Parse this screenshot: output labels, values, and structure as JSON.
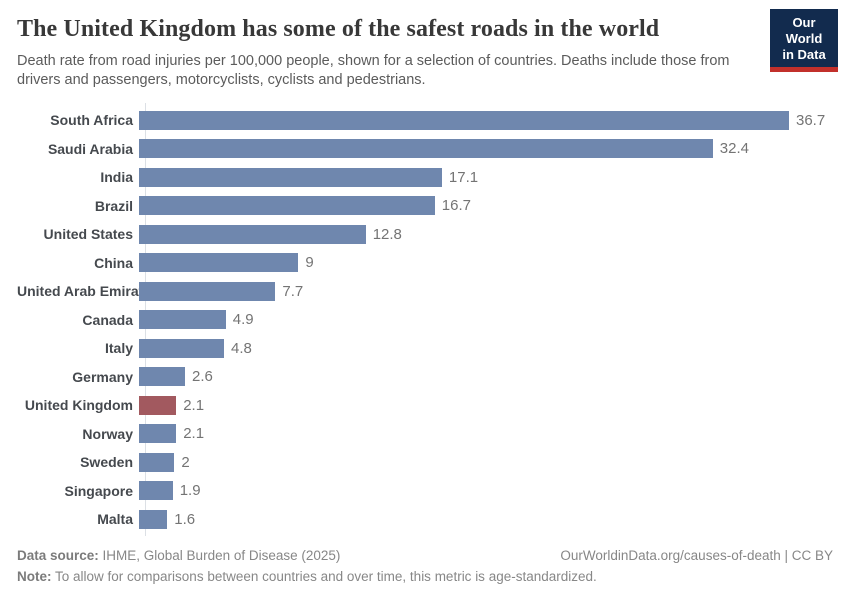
{
  "header": {
    "title": "The United Kingdom has some of the safest roads in the world",
    "subtitle": "Death rate from road injuries per 100,000 people, shown for a selection of countries. Deaths include those from drivers and passengers, motorcyclists, cyclists and pedestrians.",
    "logo": {
      "line1": "Our World",
      "line2": "in Data",
      "bg_color": "#122b4e",
      "stripe_color": "#c2302b"
    }
  },
  "chart_data": {
    "type": "bar",
    "orientation": "horizontal",
    "title": "The United Kingdom has some of the safest roads in the world",
    "categories": [
      "South Africa",
      "Saudi Arabia",
      "India",
      "Brazil",
      "United States",
      "China",
      "United Arab Emirates",
      "Canada",
      "Italy",
      "Germany",
      "United Kingdom",
      "Norway",
      "Sweden",
      "Singapore",
      "Malta"
    ],
    "values": [
      36.7,
      32.4,
      17.1,
      16.7,
      12.8,
      9,
      7.7,
      4.9,
      4.8,
      2.6,
      2.1,
      2.1,
      2,
      1.9,
      1.6
    ],
    "value_labels": [
      "36.7",
      "32.4",
      "17.1",
      "16.7",
      "12.8",
      "9",
      "7.7",
      "4.9",
      "4.8",
      "2.6",
      "2.1",
      "2.1",
      "2",
      "1.9",
      "1.6"
    ],
    "highlight_category": "United Kingdom",
    "bar_color": "#6f87ae",
    "highlight_color": "#a2595f",
    "xlim": [
      0,
      36.7
    ],
    "grid": false,
    "legend": false,
    "value_labels_shown": true
  },
  "footer": {
    "datasource_label": "Data source:",
    "datasource_text": " IHME, Global Burden of Disease (2025)",
    "attribution": "OurWorldinData.org/causes-of-death | CC BY",
    "note_label": "Note:",
    "note_text": " To allow for comparisons between countries and over time, this metric is age-standardized."
  }
}
